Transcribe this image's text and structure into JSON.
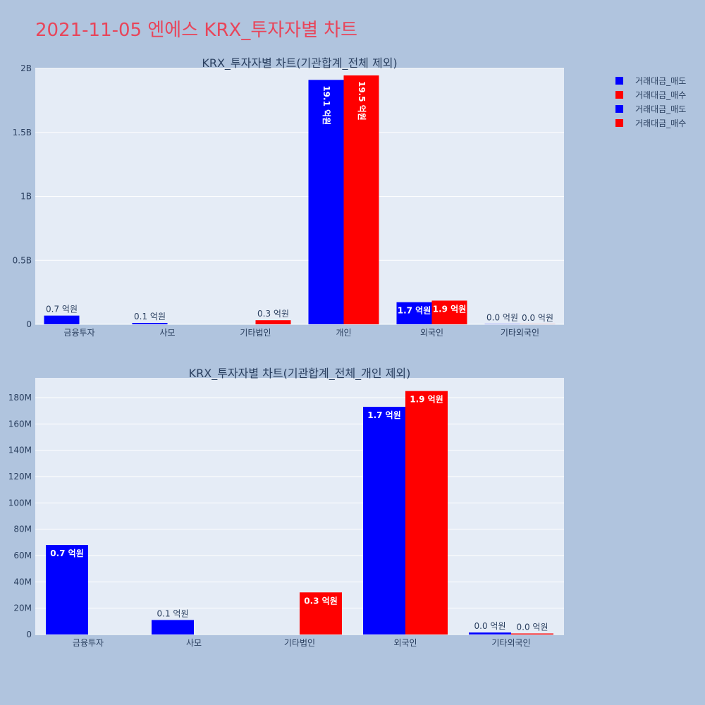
{
  "page_title": "2021-11-05 엔에스 KRX_투자자별 차트",
  "legend": [
    {
      "label": "거래대금_매도",
      "color": "#0000ff"
    },
    {
      "label": "거래대금_매수",
      "color": "#ff0000"
    },
    {
      "label": "거래대금_매도",
      "color": "#0000ff"
    },
    {
      "label": "거래대금_매수",
      "color": "#ff0000"
    }
  ],
  "colors": {
    "sell": "#0000ff",
    "buy": "#ff0000",
    "plot_bg": "#e5ecf6",
    "grid": "#ffffff",
    "text": "#2a3f5f"
  },
  "chart_data": [
    {
      "type": "bar",
      "title": "KRX_투자자별 차트(기관합계_전체 제외)",
      "categories": [
        "금융투자",
        "사모",
        "기타법인",
        "개인",
        "외국인",
        "기타외국인"
      ],
      "ylim": [
        0,
        2000000000.0
      ],
      "yticks": [
        0,
        500000000.0,
        1000000000.0,
        1500000000.0,
        2000000000.0
      ],
      "ytick_labels": [
        "0",
        "0.5B",
        "1B",
        "1.5B",
        "2B"
      ],
      "grid": true,
      "legend_position": "top-right",
      "series": [
        {
          "name": "거래대금_매도",
          "color": "#0000ff",
          "values": [
            68000000,
            11000000,
            0,
            1910000000,
            173000000,
            1500000
          ],
          "labels": [
            "0.7 억원",
            "0.1 억원",
            "",
            "19.1 억원",
            "1.7 억원",
            "0.0 억원"
          ]
        },
        {
          "name": "거래대금_매수",
          "color": "#ff0000",
          "values": [
            0,
            0,
            32000000,
            1945000000,
            185000000,
            800000
          ],
          "labels": [
            "",
            "",
            "0.3 억원",
            "19.5 억원",
            "1.9 억원",
            "0.0 억원"
          ]
        }
      ]
    },
    {
      "type": "bar",
      "title": "KRX_투자자별 차트(기관합계_전체_개인 제외)",
      "categories": [
        "금융투자",
        "사모",
        "기타법인",
        "외국인",
        "기타외국인"
      ],
      "ylim": [
        0,
        195000000.0
      ],
      "yticks": [
        0,
        20000000.0,
        40000000.0,
        60000000.0,
        80000000.0,
        100000000.0,
        120000000.0,
        140000000.0,
        160000000.0,
        180000000.0
      ],
      "ytick_labels": [
        "0",
        "20M",
        "40M",
        "60M",
        "80M",
        "100M",
        "120M",
        "140M",
        "160M",
        "180M"
      ],
      "grid": true,
      "series": [
        {
          "name": "거래대금_매도",
          "color": "#0000ff",
          "values": [
            68000000,
            11000000,
            0,
            173000000,
            1500000
          ],
          "labels": [
            "0.7 억원",
            "0.1 억원",
            "",
            "1.7 억원",
            "0.0 억원"
          ]
        },
        {
          "name": "거래대금_매수",
          "color": "#ff0000",
          "values": [
            0,
            0,
            32000000,
            185000000,
            800000
          ],
          "labels": [
            "",
            "",
            "0.3 억원",
            "1.9 억원",
            "0.0 억원"
          ]
        }
      ]
    }
  ]
}
